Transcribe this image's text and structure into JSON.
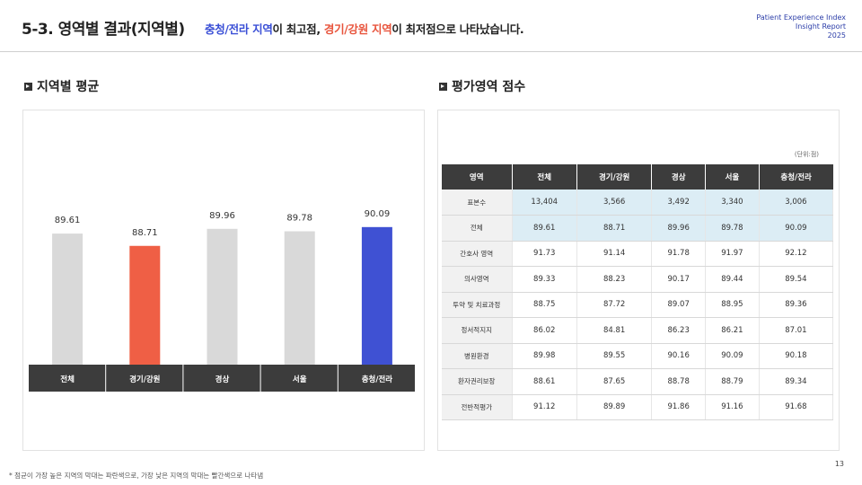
{
  "header": {
    "title": "5-3. 영역별 결과(지역별)",
    "subtitle_hl1": "충청/전라 지역",
    "subtitle_mid": "이 최고점, ",
    "subtitle_hl2": "경기/강원 지역",
    "subtitle_end": "이 최저점으로 나타났습니다.",
    "report_line1": "Patient Experience Index",
    "report_line2": "Insight Report",
    "report_line3": "2025"
  },
  "left_section": {
    "title": "지역별 평균"
  },
  "right_section": {
    "title": "평가영역 점수",
    "unit": "(단위:점)"
  },
  "colors": {
    "gray": "#d9d9d9",
    "red": "#ef5f45",
    "blue": "#3f51d3",
    "dark": "#3c3c3c"
  },
  "chart_data": {
    "type": "bar",
    "categories": [
      "전체",
      "경기/강원",
      "경상",
      "서울",
      "충청/전라"
    ],
    "values": [
      89.61,
      88.71,
      89.96,
      89.78,
      90.09
    ],
    "bar_colors": [
      "#d9d9d9",
      "#ef5f45",
      "#d9d9d9",
      "#d9d9d9",
      "#3f51d3"
    ],
    "ylim": [
      80,
      91
    ]
  },
  "table": {
    "headers": [
      "영역",
      "전체",
      "경기/강원",
      "경상",
      "서울",
      "충청/전라"
    ],
    "rows": [
      {
        "label": "표본수",
        "values": [
          "13,404",
          "3,566",
          "3,492",
          "3,340",
          "3,006"
        ],
        "highlight": true
      },
      {
        "label": "전체",
        "values": [
          "89.61",
          "88.71",
          "89.96",
          "89.78",
          "90.09"
        ],
        "highlight": true
      },
      {
        "label": "간호사 영역",
        "values": [
          "91.73",
          "91.14",
          "91.78",
          "91.97",
          "92.12"
        ]
      },
      {
        "label": "의사영역",
        "values": [
          "89.33",
          "88.23",
          "90.17",
          "89.44",
          "89.54"
        ]
      },
      {
        "label": "투약 및 치료과정",
        "values": [
          "88.75",
          "87.72",
          "89.07",
          "88.95",
          "89.36"
        ]
      },
      {
        "label": "정서적지지",
        "values": [
          "86.02",
          "84.81",
          "86.23",
          "86.21",
          "87.01"
        ]
      },
      {
        "label": "병원환경",
        "values": [
          "89.98",
          "89.55",
          "90.16",
          "90.09",
          "90.18"
        ]
      },
      {
        "label": "환자권리보장",
        "values": [
          "88.61",
          "87.65",
          "88.78",
          "88.79",
          "89.34"
        ]
      },
      {
        "label": "전반적평가",
        "values": [
          "91.12",
          "89.89",
          "91.86",
          "91.16",
          "91.68"
        ]
      }
    ]
  },
  "footnote": "* 점균이 가장 높은 지역의 막대는 파란색으로, 가장 낮은 지역의 막대는 빨간색으로 나타냄",
  "page_number": "13"
}
